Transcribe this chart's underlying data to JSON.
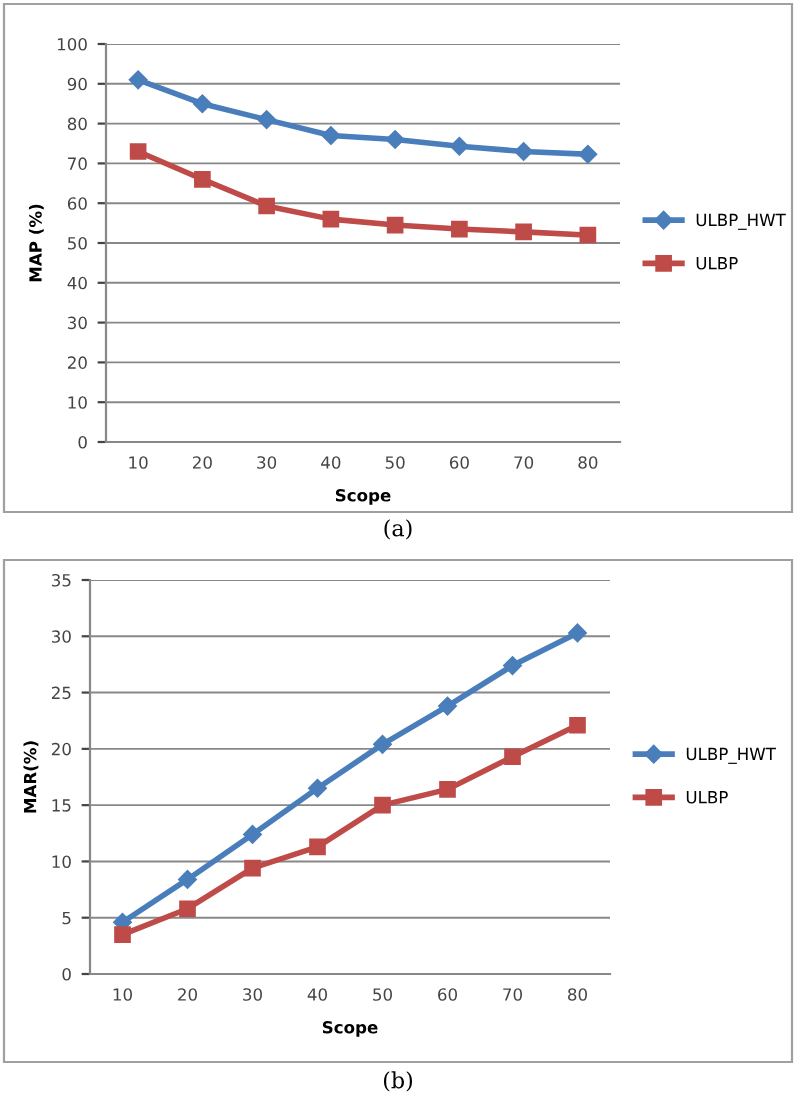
{
  "chart_data": [
    {
      "type": "line",
      "xlabel": "Scope",
      "ylabel": "MAP (%)",
      "categories": [
        "10",
        "20",
        "30",
        "40",
        "50",
        "60",
        "70",
        "80"
      ],
      "ylim": [
        0,
        100
      ],
      "yticks": [
        0,
        10,
        20,
        30,
        40,
        50,
        60,
        70,
        80,
        90,
        100
      ],
      "grid": "y",
      "legend": "right",
      "annotations": [
        "(a)"
      ],
      "series": [
        {
          "name": "ULBP_HWT",
          "color": "#4a7ebb",
          "marker": "diamond",
          "values": [
            91,
            85,
            81,
            77,
            76,
            74.3,
            73,
            72.3
          ]
        },
        {
          "name": "ULBP",
          "color": "#be4b48",
          "marker": "square",
          "values": [
            73,
            66,
            59.3,
            56,
            54.5,
            53.5,
            52.8,
            52
          ]
        }
      ]
    },
    {
      "type": "line",
      "xlabel": "Scope",
      "ylabel": "MAR(%)",
      "categories": [
        "10",
        "20",
        "30",
        "40",
        "50",
        "60",
        "70",
        "80"
      ],
      "ylim": [
        0,
        35
      ],
      "yticks": [
        0,
        5,
        10,
        15,
        20,
        25,
        30,
        35
      ],
      "grid": "y",
      "legend": "right",
      "annotations": [
        "(b)"
      ],
      "series": [
        {
          "name": "ULBP_HWT",
          "color": "#4a7ebb",
          "marker": "diamond",
          "values": [
            4.6,
            8.4,
            12.4,
            16.5,
            20.4,
            23.8,
            27.4,
            30.3
          ]
        },
        {
          "name": "ULBP",
          "color": "#be4b48",
          "marker": "square",
          "values": [
            3.5,
            5.8,
            9.4,
            11.3,
            15,
            16.4,
            19.3,
            22.1
          ]
        }
      ]
    }
  ]
}
